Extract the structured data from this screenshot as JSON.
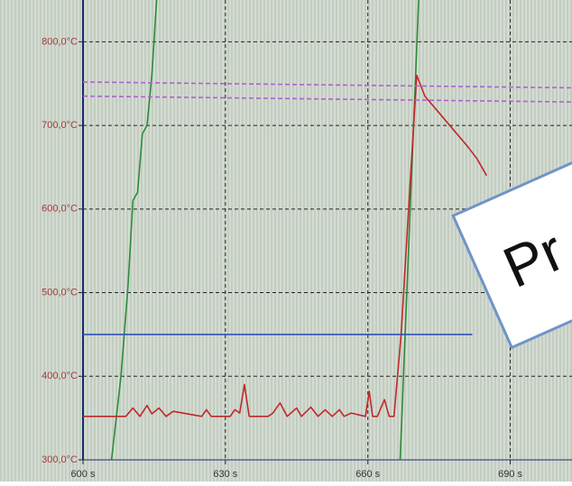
{
  "chart_data": {
    "type": "line",
    "xlim": [
      600,
      703
    ],
    "xticks": [
      {
        "value": 600,
        "label": "600 s"
      },
      {
        "value": 630,
        "label": "630 s"
      },
      {
        "value": 660,
        "label": "660 s"
      },
      {
        "value": 690,
        "label": "690 s"
      }
    ],
    "ylim": [
      300,
      850
    ],
    "yticks": [
      {
        "value": 300,
        "label": "300,0°C"
      },
      {
        "value": 400,
        "label": "400,0°C"
      },
      {
        "value": 500,
        "label": "500,0°C"
      },
      {
        "value": 600,
        "label": "600,0°C"
      },
      {
        "value": 700,
        "label": "700,0°C"
      },
      {
        "value": 800,
        "label": "800,0°C"
      }
    ],
    "grid": true,
    "series": [
      {
        "color": "#2e8b3a",
        "x": [
          606,
          608,
          609.5,
          610.5,
          611.5,
          612.5,
          613.5,
          614.5,
          615.5,
          null,
          666.8,
          668,
          669.5,
          670.7
        ],
        "values": [
          300,
          400,
          510,
          610,
          620,
          690,
          700,
          760,
          850,
          null,
          300,
          470,
          680,
          850
        ]
      },
      {
        "color": "#c0282a",
        "x": [
          600,
          609,
          610.5,
          612,
          613.5,
          614.5,
          616,
          617.5,
          619,
          625,
          626,
          627,
          631,
          632,
          633,
          634,
          635,
          639,
          640,
          641.5,
          643,
          645,
          646,
          648,
          649.5,
          651,
          652.5,
          654,
          655,
          656.5,
          659.5,
          660.3,
          661,
          662,
          663.5,
          664.5,
          665.5,
          667,
          669,
          670.3,
          672,
          675,
          678,
          681,
          683,
          685
        ],
        "values": [
          352,
          352,
          362,
          352,
          365,
          355,
          362,
          352,
          358,
          352,
          360,
          352,
          352,
          360,
          356,
          390,
          352,
          352,
          356,
          368,
          352,
          362,
          352,
          363,
          352,
          360,
          352,
          360,
          352,
          356,
          352,
          382,
          352,
          352,
          372,
          352,
          352,
          450,
          640,
          760,
          735,
          715,
          695,
          675,
          660,
          640
        ]
      },
      {
        "color": "#2f52b8",
        "x": [
          600,
          682
        ],
        "values": [
          450,
          450
        ]
      },
      {
        "color": "#b060d0",
        "dashed": true,
        "x": [
          600,
          703
        ],
        "values": [
          752,
          745
        ]
      },
      {
        "color": "#b060d0",
        "dashed": true,
        "x": [
          600,
          703
        ],
        "values": [
          735,
          728
        ]
      }
    ],
    "annotation": "Pr"
  }
}
